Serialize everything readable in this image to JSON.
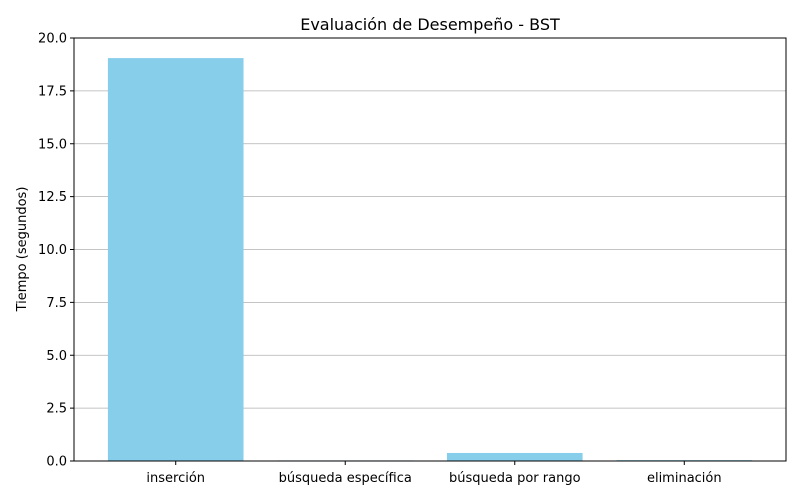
{
  "chart_data": {
    "type": "bar",
    "title": "Evaluación de Desempeño - BST",
    "xlabel": "",
    "ylabel": "Tiempo (segundos)",
    "categories": [
      "inserción",
      "búsqueda específica",
      "búsqueda por rango",
      "eliminación"
    ],
    "values": [
      19.05,
      0.005,
      0.38,
      0.04
    ],
    "ylim": [
      0,
      20
    ],
    "yticks": [
      "0.0",
      "2.5",
      "5.0",
      "7.5",
      "10.0",
      "12.5",
      "15.0",
      "17.5",
      "20.0"
    ],
    "grid": "y-only",
    "colors": {
      "bar": "#87ceeb",
      "grid": "#b0b0b0",
      "axis": "#000000"
    }
  }
}
